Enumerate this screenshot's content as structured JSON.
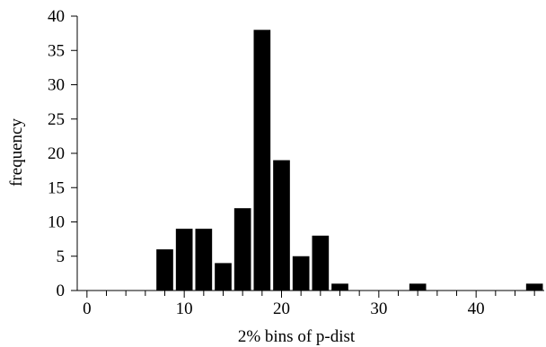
{
  "chart_data": {
    "type": "bar",
    "xlabel": "2% bins of p-dist",
    "ylabel": "frequency",
    "xlim": [
      -1,
      47
    ],
    "ylim": [
      0,
      40
    ],
    "x_ticks": [
      0,
      10,
      20,
      30,
      40
    ],
    "y_ticks": [
      0,
      5,
      10,
      15,
      20,
      25,
      30,
      35,
      40
    ],
    "bin_width": 2,
    "bars": [
      {
        "x": 8,
        "value": 6
      },
      {
        "x": 10,
        "value": 9
      },
      {
        "x": 12,
        "value": 9
      },
      {
        "x": 14,
        "value": 4
      },
      {
        "x": 16,
        "value": 12
      },
      {
        "x": 18,
        "value": 38
      },
      {
        "x": 20,
        "value": 19
      },
      {
        "x": 22,
        "value": 5
      },
      {
        "x": 24,
        "value": 8
      },
      {
        "x": 26,
        "value": 1
      },
      {
        "x": 34,
        "value": 1
      },
      {
        "x": 46,
        "value": 1
      }
    ],
    "bar_color": "#000000",
    "axis_color": "#000000",
    "grid": false
  }
}
